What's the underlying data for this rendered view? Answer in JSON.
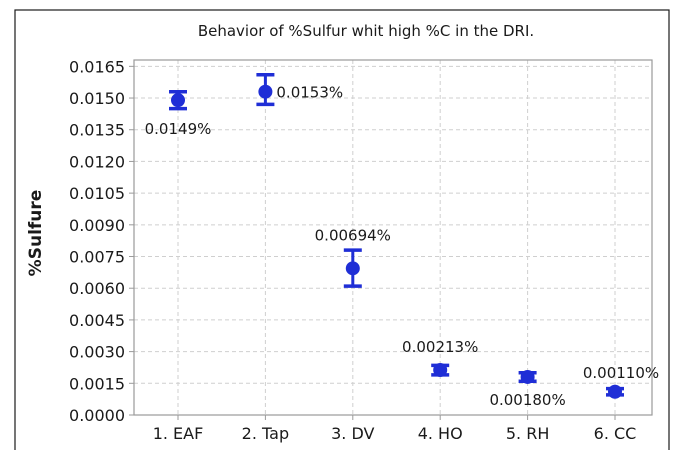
{
  "chart_data": {
    "type": "scatter",
    "title": "Behavior of %Sulfur whit high %C in the DRI.",
    "xlabel": "",
    "ylabel": "%Sulfure",
    "categories": [
      "1. EAF",
      "2. Tap",
      "3. DV",
      "4. HO",
      "5. RH",
      "6. CC"
    ],
    "series": [
      {
        "values": [
          0.0149,
          0.0153,
          0.00694,
          0.00213,
          0.0018,
          0.0011
        ],
        "error_low": [
          0.0145,
          0.0147,
          0.0061,
          0.0019,
          0.0016,
          0.00095
        ],
        "error_high": [
          0.0153,
          0.0161,
          0.0078,
          0.00235,
          0.002,
          0.00125
        ],
        "data_labels": [
          "0.0149%",
          "0.0153%",
          "0.00694%",
          "0.00213%",
          "0.00180%",
          "0.00110%"
        ]
      }
    ],
    "ylim": [
      0,
      0.0168
    ],
    "yticks": [
      "0.0000",
      "0.0015",
      "0.0030",
      "0.0045",
      "0.0060",
      "0.0075",
      "0.0090",
      "0.0105",
      "0.0120",
      "0.0135",
      "0.0150",
      "0.0165"
    ],
    "grid": true,
    "legend": "none",
    "colors": {
      "marker": "#1f2ed6",
      "grid": "#cfcfcf",
      "axis": "#9a9a9a",
      "frame": "#1a1a1a"
    }
  }
}
